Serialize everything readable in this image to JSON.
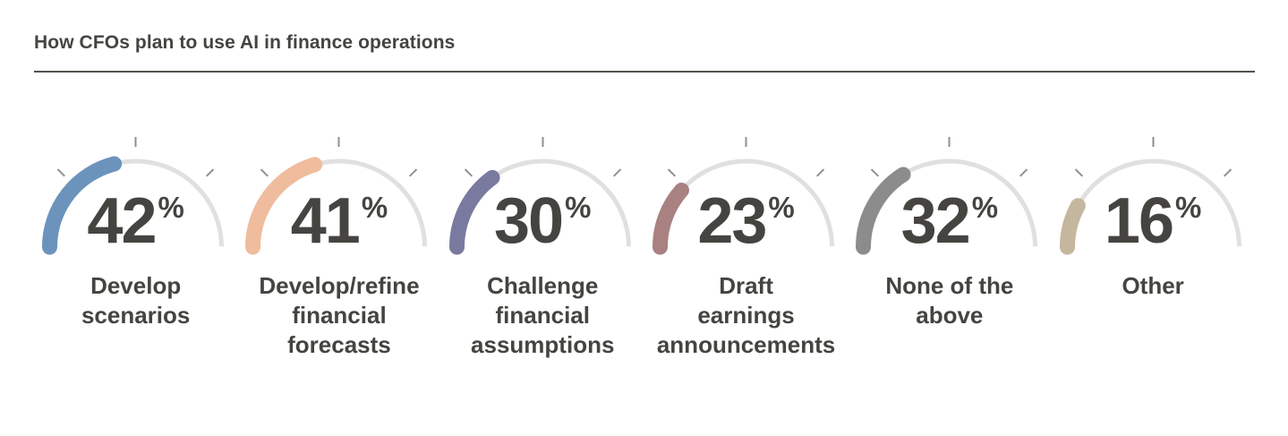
{
  "header": {
    "title": "How CFOs plan to use AI in finance operations"
  },
  "labels": {
    "percent_sign": "%"
  },
  "theme": {
    "text_color": "#454440",
    "rule_color": "#54504b",
    "track_color": "#e0e0e0",
    "tick_color": "#8f8f8f",
    "background": "#ffffff"
  },
  "gauges": [
    {
      "value": 42,
      "label": "Develop\nscenarios",
      "color": "#6b93bc"
    },
    {
      "value": 41,
      "label": "Develop/refine\nfinancial\nforecasts",
      "color": "#efbd9d"
    },
    {
      "value": 30,
      "label": "Challenge\nfinancial\nassumptions",
      "color": "#7a7aa0"
    },
    {
      "value": 23,
      "label": "Draft\nearnings\nannouncements",
      "color": "#a98181"
    },
    {
      "value": 32,
      "label": "None of the\nabove",
      "color": "#8c8c8c"
    },
    {
      "value": 16,
      "label": "Other",
      "color": "#c5b69e"
    }
  ],
  "chart_data": {
    "type": "gauge",
    "title": "How CFOs plan to use AI in finance operations",
    "unit": "%",
    "gauge_range": [
      0,
      100
    ],
    "gauge_sweep_degrees": 180,
    "categories": [
      "Develop scenarios",
      "Develop/refine financial forecasts",
      "Challenge financial assumptions",
      "Draft earnings announcements",
      "None of the above",
      "Other"
    ],
    "values": [
      42,
      41,
      30,
      23,
      32,
      16
    ],
    "colors": [
      "#6b93bc",
      "#efbd9d",
      "#7a7aa0",
      "#a98181",
      "#8c8c8c",
      "#c5b69e"
    ],
    "tick_angles_degrees": [
      45,
      90,
      135
    ],
    "legend": "none",
    "grid": false
  }
}
